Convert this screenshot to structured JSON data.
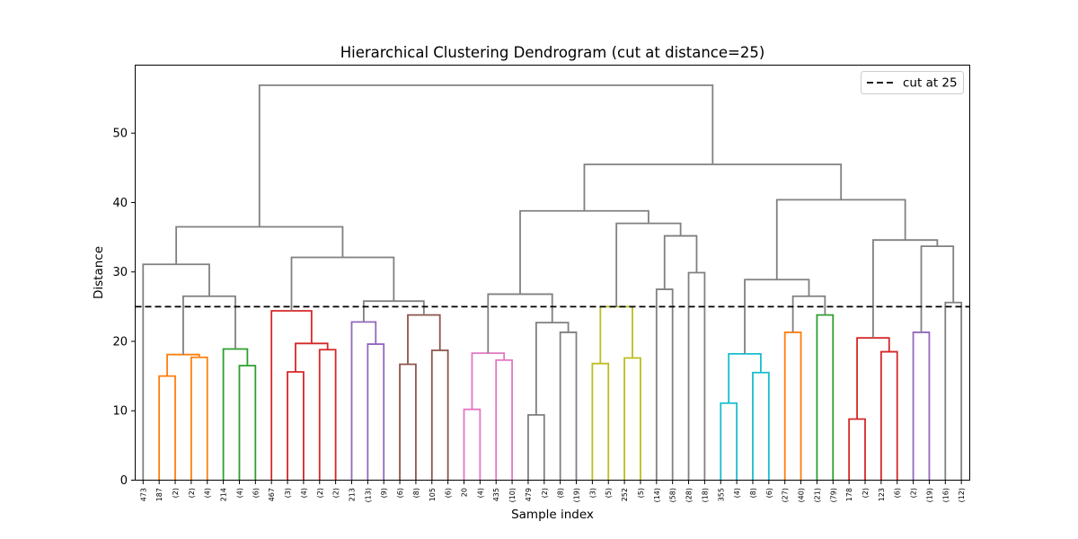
{
  "chart_data": {
    "type": "dendrogram",
    "title": "Hierarchical Clustering Dendrogram (cut at distance=25)",
    "xlabel": "Sample index",
    "ylabel": "Distance",
    "ylim": [
      0,
      59.8
    ],
    "yticks": [
      0,
      10,
      20,
      30,
      40,
      50
    ],
    "grid": false,
    "legend": {
      "placement": "top-right",
      "entries": [
        {
          "label": "cut at 25",
          "style": "dashed",
          "color": "#000000"
        }
      ]
    },
    "cut_distance": 25,
    "leaf_labels": [
      "473",
      "187",
      "(2)",
      "(2)",
      "(4)",
      "214",
      "(4)",
      "(6)",
      "467",
      "(3)",
      "(4)",
      "(2)",
      "(2)",
      "213",
      "(13)",
      "(9)",
      "(6)",
      "(8)",
      "105",
      "(6)",
      "20",
      "(4)",
      "435",
      "(10)",
      "479",
      "(2)",
      "(8)",
      "(19)",
      "(3)",
      "(5)",
      "252",
      "(5)",
      "(14)",
      "(58)",
      "(28)",
      "(18)",
      "355",
      "(4)",
      "(8)",
      "(6)",
      "(27)",
      "(40)",
      "(21)",
      "(79)",
      "178",
      "(2)",
      "123",
      "(6)",
      "(2)",
      "(19)",
      "(16)",
      "(12)"
    ],
    "colors": {
      "above_threshold": "#808080",
      "clusters": [
        "#ff7f0e",
        "#2ca02c",
        "#d62728",
        "#9467bd",
        "#8c564b",
        "#e377c2",
        "#7f7f7f",
        "#bcbd22",
        "#17becf"
      ]
    },
    "merges": [
      {
        "left": 1,
        "right": 2,
        "height": 15.0,
        "color": "#ff7f0e"
      },
      {
        "left": 3,
        "right": 4,
        "height": 17.7,
        "color": "#ff7f0e"
      },
      {
        "left": 1.5,
        "right": 3.5,
        "height": 18.1,
        "color": "#ff7f0e"
      },
      {
        "left": 6,
        "right": 7,
        "height": 16.5,
        "color": "#2ca02c"
      },
      {
        "left": 5,
        "right": 6.5,
        "height": 18.9,
        "color": "#2ca02c"
      },
      {
        "left": 2.5,
        "right": 5.75,
        "height": 26.5,
        "color": "#808080"
      },
      {
        "left": 0,
        "right": 4.125,
        "height": 31.1,
        "color": "#808080"
      },
      {
        "left": 9,
        "right": 10,
        "height": 15.6,
        "color": "#d62728"
      },
      {
        "left": 11,
        "right": 12,
        "height": 18.8,
        "color": "#d62728"
      },
      {
        "left": 9.5,
        "right": 11.5,
        "height": 19.7,
        "color": "#d62728"
      },
      {
        "left": 8,
        "right": 10.5,
        "height": 24.4,
        "color": "#d62728"
      },
      {
        "left": 14,
        "right": 15,
        "height": 19.6,
        "color": "#9467bd"
      },
      {
        "left": 13,
        "right": 14.5,
        "height": 22.8,
        "color": "#9467bd"
      },
      {
        "left": 16,
        "right": 17,
        "height": 16.7,
        "color": "#8c564b"
      },
      {
        "left": 18,
        "right": 19,
        "height": 18.7,
        "color": "#8c564b"
      },
      {
        "left": 16.5,
        "right": 18.5,
        "height": 23.8,
        "color": "#8c564b"
      },
      {
        "left": 13.75,
        "right": 17.5,
        "height": 25.8,
        "color": "#808080"
      },
      {
        "left": 9.25,
        "right": 15.625,
        "height": 32.1,
        "color": "#808080"
      },
      {
        "left": 2.0625,
        "right": 12.4375,
        "height": 36.5,
        "color": "#808080"
      },
      {
        "left": 20,
        "right": 21,
        "height": 10.2,
        "color": "#e377c2"
      },
      {
        "left": 22,
        "right": 23,
        "height": 17.3,
        "color": "#e377c2"
      },
      {
        "left": 20.5,
        "right": 22.5,
        "height": 18.3,
        "color": "#e377c2"
      },
      {
        "left": 24,
        "right": 25,
        "height": 9.4,
        "color": "#7f7f7f"
      },
      {
        "left": 26,
        "right": 27,
        "height": 21.3,
        "color": "#7f7f7f"
      },
      {
        "left": 24.5,
        "right": 26.5,
        "height": 22.7,
        "color": "#7f7f7f"
      },
      {
        "left": 21.5,
        "right": 25.5,
        "height": 26.8,
        "color": "#808080"
      },
      {
        "left": 28,
        "right": 29,
        "height": 16.8,
        "color": "#bcbd22"
      },
      {
        "left": 30,
        "right": 31,
        "height": 17.6,
        "color": "#bcbd22"
      },
      {
        "left": 28.5,
        "right": 30.5,
        "height": 25.0,
        "color": "#bcbd22"
      },
      {
        "left": 32,
        "right": 33,
        "height": 27.5,
        "color": "#808080"
      },
      {
        "left": 34,
        "right": 35,
        "height": 29.9,
        "color": "#808080"
      },
      {
        "left": 32.5,
        "right": 34.5,
        "height": 35.2,
        "color": "#808080"
      },
      {
        "left": 29.5,
        "right": 33.5,
        "height": 37.0,
        "color": "#808080"
      },
      {
        "left": 23.5,
        "right": 31.5,
        "height": 38.8,
        "color": "#808080"
      },
      {
        "left": 36,
        "right": 37,
        "height": 11.1,
        "color": "#17becf"
      },
      {
        "left": 38,
        "right": 39,
        "height": 15.5,
        "color": "#17becf"
      },
      {
        "left": 36.5,
        "right": 38.5,
        "height": 18.2,
        "color": "#17becf"
      },
      {
        "left": 40,
        "right": 41,
        "height": 21.3,
        "color": "#ff7f0e"
      },
      {
        "left": 42,
        "right": 43,
        "height": 23.8,
        "color": "#2ca02c"
      },
      {
        "left": 40.5,
        "right": 42.5,
        "height": 26.5,
        "color": "#808080"
      },
      {
        "left": 37.5,
        "right": 41.5,
        "height": 28.9,
        "color": "#808080"
      },
      {
        "left": 44,
        "right": 45,
        "height": 8.8,
        "color": "#d62728"
      },
      {
        "left": 46,
        "right": 47,
        "height": 18.5,
        "color": "#d62728"
      },
      {
        "left": 44.5,
        "right": 46.5,
        "height": 20.5,
        "color": "#d62728"
      },
      {
        "left": 48,
        "right": 49,
        "height": 21.3,
        "color": "#9467bd"
      },
      {
        "left": 50,
        "right": 51,
        "height": 25.6,
        "color": "#808080"
      },
      {
        "left": 48.5,
        "right": 50.5,
        "height": 33.7,
        "color": "#808080"
      },
      {
        "left": 45.5,
        "right": 49.5,
        "height": 34.6,
        "color": "#808080"
      },
      {
        "left": 39.5,
        "right": 47.5,
        "height": 40.4,
        "color": "#808080"
      },
      {
        "left": 27.5,
        "right": 43.5,
        "height": 45.5,
        "color": "#808080"
      },
      {
        "left": 7.25,
        "right": 35.5,
        "height": 56.9,
        "color": "#808080"
      }
    ]
  }
}
